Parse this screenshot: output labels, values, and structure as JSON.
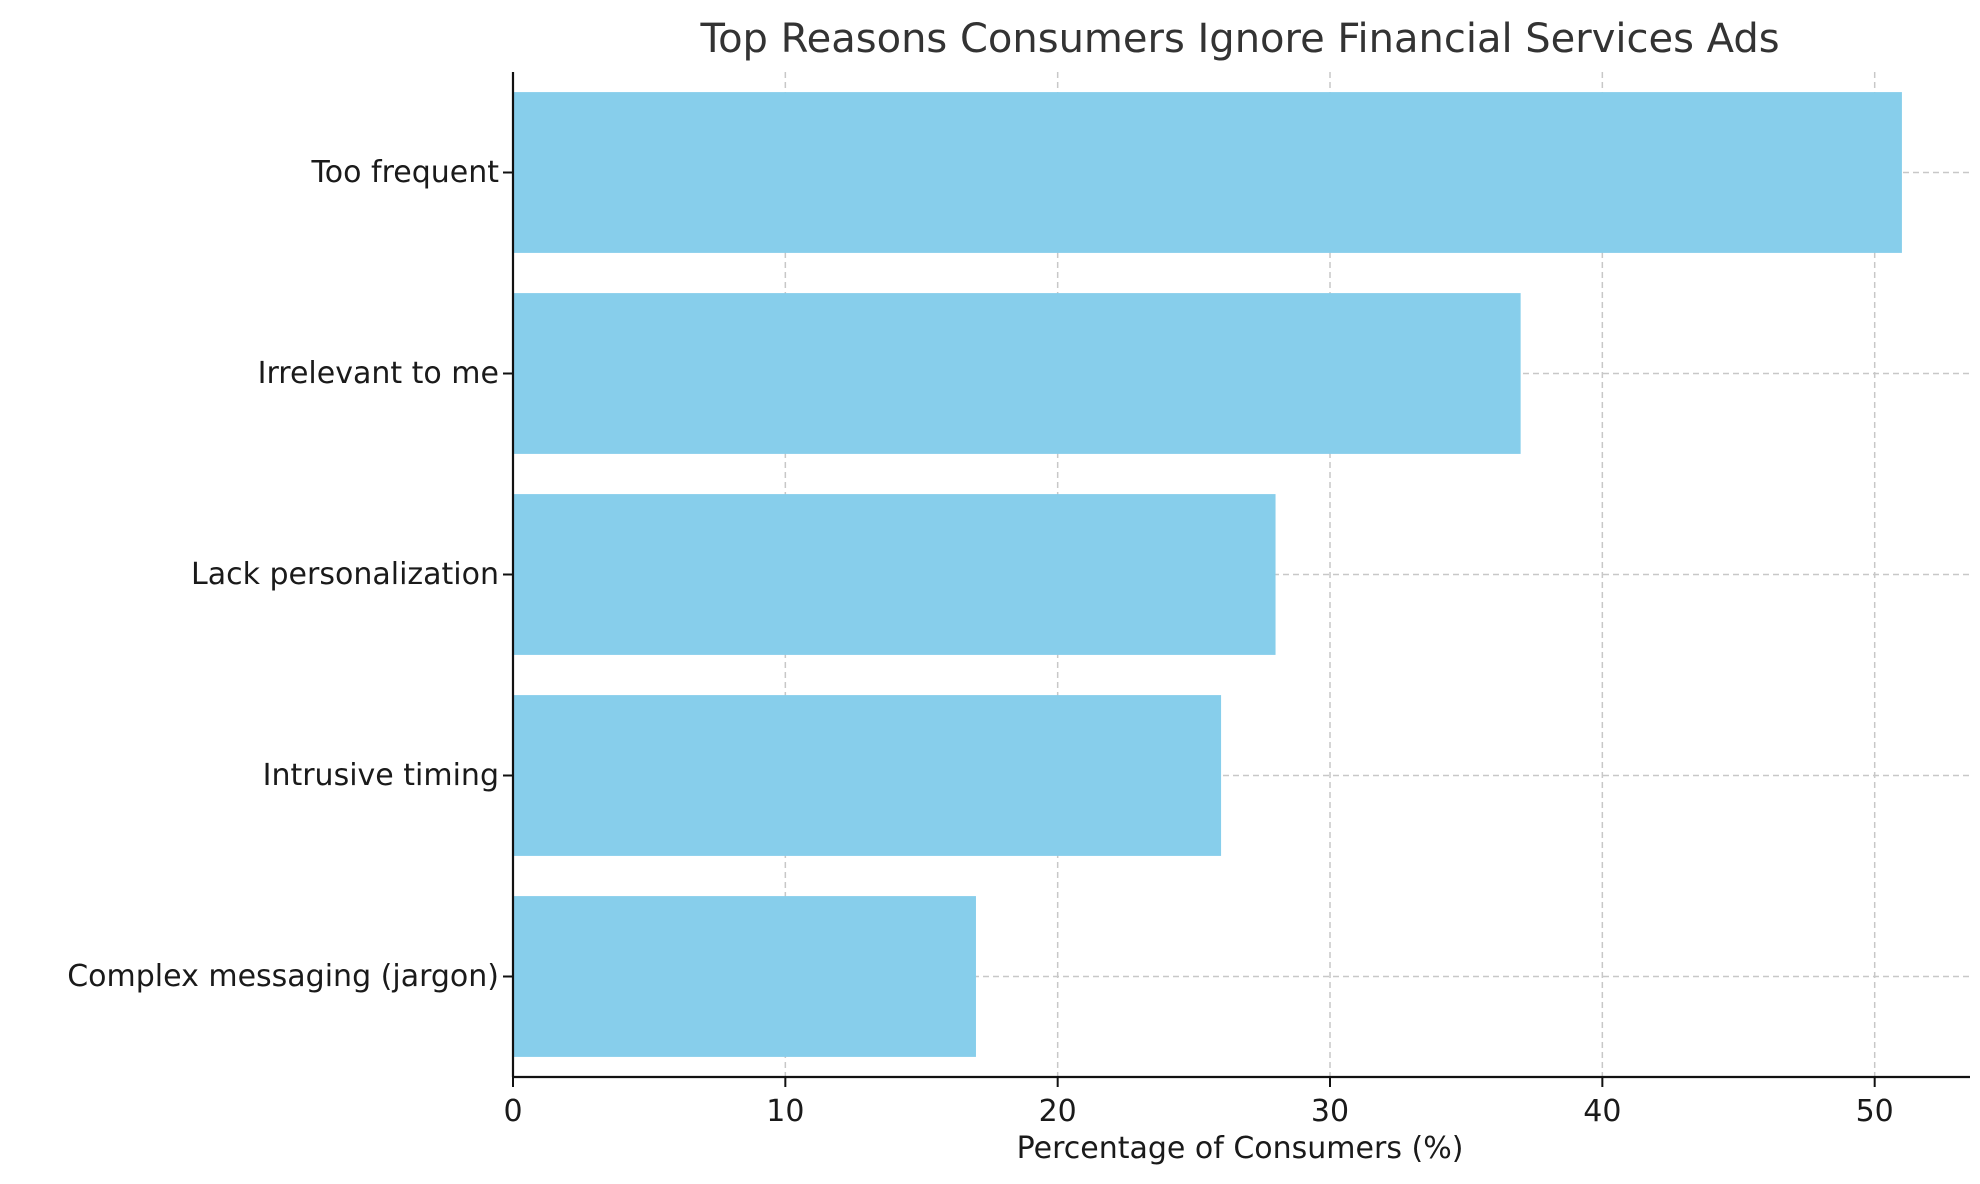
{
  "chart_data": {
    "type": "bar",
    "orientation": "horizontal",
    "title": "Top Reasons Consumers Ignore Financial Services Ads",
    "xlabel": "Percentage of Consumers (%)",
    "ylabel": "",
    "categories": [
      "Too frequent",
      "Irrelevant to me",
      "Lack personalization",
      "Intrusive timing",
      "Complex messaging (jargon)"
    ],
    "values": [
      51,
      37,
      28,
      26,
      17
    ],
    "xlim": [
      0,
      53.5
    ],
    "xticks": [
      0,
      10,
      20,
      30,
      40,
      50
    ],
    "xtick_labels": [
      "0",
      "10",
      "20",
      "30",
      "40",
      "50"
    ],
    "grid": true,
    "bar_color": "#87CEEB",
    "axis_color": "#111111",
    "grid_color": "#c8c8c8",
    "title_color": "#333333"
  }
}
